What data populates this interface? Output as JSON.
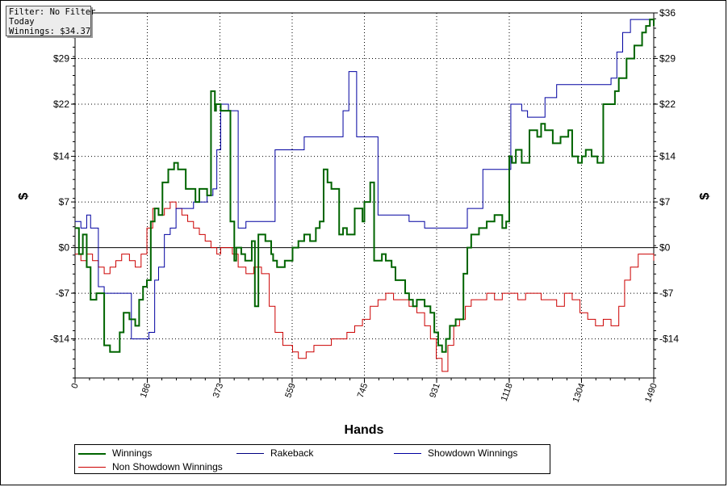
{
  "info": {
    "filter": "Filter: No Filter",
    "period": "Today",
    "winnings": "Winnings: $34.37"
  },
  "chart_data": {
    "type": "line",
    "xlabel": "Hands",
    "ylabel": "$",
    "ylabel_right": "$",
    "xlim": [
      0,
      1490
    ],
    "ylim": [
      -20,
      36
    ],
    "x_ticks": [
      0,
      186,
      373,
      559,
      745,
      931,
      1118,
      1304,
      1490
    ],
    "x_tick_labels": [
      "0",
      "186",
      "373",
      "559",
      "745",
      "931",
      "1118",
      "1304",
      "1490"
    ],
    "y_ticks": [
      36,
      29,
      22,
      14,
      7,
      0,
      -7,
      -14
    ],
    "y_tick_labels": [
      "$36",
      "$29",
      "$22",
      "$14",
      "$7",
      "$0",
      "-$7",
      "-$14"
    ],
    "grid": true,
    "legend_position": "bottom",
    "series": [
      {
        "name": "Winnings",
        "color": "#006400",
        "x": [
          0,
          10,
          20,
          30,
          40,
          55,
          75,
          90,
          100,
          115,
          125,
          140,
          155,
          165,
          175,
          185,
          195,
          205,
          215,
          225,
          240,
          255,
          265,
          285,
          310,
          320,
          340,
          350,
          360,
          363,
          375,
          390,
          400,
          410,
          415,
          428,
          438,
          455,
          463,
          472,
          490,
          505,
          510,
          520,
          540,
          560,
          575,
          590,
          605,
          620,
          630,
          640,
          650,
          660,
          680,
          690,
          700,
          720,
          740,
          745,
          760,
          770,
          780,
          790,
          800,
          815,
          825,
          850,
          860,
          870,
          880,
          900,
          915,
          925,
          935,
          945,
          955,
          965,
          980,
          1000,
          1010,
          1020,
          1040,
          1060,
          1080,
          1100,
          1110,
          1118,
          1125,
          1135,
          1150,
          1170,
          1190,
          1200,
          1210,
          1230,
          1250,
          1270,
          1280,
          1295,
          1305,
          1315,
          1330,
          1345,
          1360,
          1375,
          1390,
          1400,
          1420,
          1440,
          1460,
          1470,
          1480,
          1490
        ],
        "y": [
          3,
          -1,
          2,
          -3,
          -8,
          -7,
          -15,
          -16,
          -16,
          -13,
          -10,
          -11,
          -12,
          -8,
          -6,
          -5,
          4,
          6,
          5,
          10,
          12,
          13,
          12,
          9,
          7,
          9,
          8,
          24,
          21,
          22,
          21,
          21,
          4,
          -2,
          0,
          -1,
          -2,
          1,
          -9,
          2,
          1,
          -1,
          -2,
          -3,
          -2,
          0,
          1,
          2,
          1,
          3,
          4,
          12,
          10,
          9,
          2,
          3,
          2,
          6,
          4,
          7,
          10,
          -2,
          -2,
          -1,
          -2,
          -3,
          -5,
          -7,
          -8,
          -9,
          -8,
          -9,
          -10,
          -13,
          -15,
          -16,
          -14,
          -12,
          -11,
          -4,
          0,
          2,
          3,
          4,
          5,
          3,
          4,
          14,
          13,
          15,
          13,
          18,
          17,
          19,
          18,
          16,
          17,
          18,
          14,
          13,
          14,
          15,
          14,
          13,
          22,
          22,
          24,
          26,
          29,
          31,
          33,
          34,
          35,
          34
        ],
        "style": "step"
      },
      {
        "name": "Rakeback",
        "color": "#000080",
        "x": [
          0,
          1490
        ],
        "y": [
          0,
          0
        ],
        "style": "line"
      },
      {
        "name": "Showdown Winnings",
        "color": "#0000a0",
        "x": [
          0,
          15,
          30,
          40,
          60,
          75,
          95,
          110,
          130,
          145,
          160,
          175,
          190,
          205,
          215,
          230,
          245,
          260,
          275,
          290,
          305,
          320,
          340,
          355,
          365,
          375,
          395,
          420,
          440,
          490,
          515,
          545,
          590,
          610,
          650,
          655,
          665,
          690,
          705,
          725,
          745,
          760,
          780,
          800,
          820,
          840,
          860,
          880,
          900,
          940,
          1010,
          1050,
          1080,
          1100,
          1115,
          1122,
          1135,
          1150,
          1165,
          1185,
          1210,
          1240,
          1260,
          1280,
          1300,
          1330,
          1360,
          1380,
          1395,
          1410,
          1430,
          1450,
          1470,
          1490
        ],
        "y": [
          4,
          3,
          5,
          3,
          -6,
          -7,
          -7,
          -7,
          -7,
          -14,
          -14,
          -14,
          -13,
          -5,
          -3,
          2,
          3,
          6,
          6,
          6,
          7,
          7,
          8,
          9,
          15,
          22,
          21,
          3,
          4,
          4,
          15,
          15,
          17,
          17,
          17,
          17,
          17,
          21,
          27,
          17,
          17,
          17,
          5,
          5,
          5,
          5,
          4,
          4,
          3,
          3,
          6,
          12,
          12,
          12,
          12,
          22,
          22,
          21,
          20,
          20,
          23,
          25,
          25,
          25,
          25,
          25,
          25,
          26,
          30,
          33,
          35,
          35,
          35,
          35
        ],
        "style": "step"
      },
      {
        "name": "Non Showdown Winnings",
        "color": "#cc0000",
        "x": [
          0,
          15,
          30,
          45,
          60,
          75,
          90,
          105,
          120,
          140,
          155,
          170,
          185,
          200,
          215,
          230,
          245,
          260,
          275,
          290,
          305,
          320,
          335,
          350,
          365,
          375,
          390,
          405,
          420,
          440,
          460,
          480,
          500,
          515,
          535,
          560,
          575,
          595,
          615,
          640,
          660,
          680,
          700,
          720,
          740,
          760,
          780,
          800,
          820,
          840,
          860,
          880,
          900,
          915,
          930,
          945,
          960,
          975,
          990,
          1005,
          1020,
          1040,
          1060,
          1080,
          1100,
          1120,
          1140,
          1160,
          1180,
          1200,
          1220,
          1240,
          1260,
          1280,
          1300,
          1320,
          1340,
          1360,
          1380,
          1400,
          1415,
          1430,
          1450,
          1470,
          1490
        ],
        "y": [
          -1,
          -2,
          -1,
          -2,
          -3,
          -4,
          -3,
          -2,
          -1,
          -2,
          -3,
          -1,
          3,
          6,
          5,
          6,
          7,
          6,
          5,
          4,
          3,
          2,
          1,
          0,
          -1,
          0,
          0,
          -1,
          -3,
          -4,
          -3,
          -4,
          -9,
          -13,
          -15,
          -16,
          -17,
          -16,
          -15,
          -15,
          -14,
          -14,
          -13,
          -12,
          -11,
          -9,
          -8,
          -7,
          -8,
          -8,
          -9,
          -10,
          -12,
          -14,
          -17,
          -19,
          -15,
          -12,
          -11,
          -9,
          -8,
          -8,
          -7,
          -8,
          -7,
          -7,
          -8,
          -7,
          -7,
          -8,
          -8,
          -9,
          -7,
          -8,
          -10,
          -11,
          -12,
          -11,
          -12,
          -9,
          -5,
          -3,
          -1,
          -1,
          -2
        ],
        "style": "step"
      }
    ]
  },
  "legend": {
    "items": [
      {
        "label": "Winnings",
        "color": "#006400"
      },
      {
        "label": "Rakeback",
        "color": "#000080"
      },
      {
        "label": "Showdown Winnings",
        "color": "#0000a0"
      },
      {
        "label": "Non Showdown Winnings",
        "color": "#cc0000"
      }
    ]
  }
}
